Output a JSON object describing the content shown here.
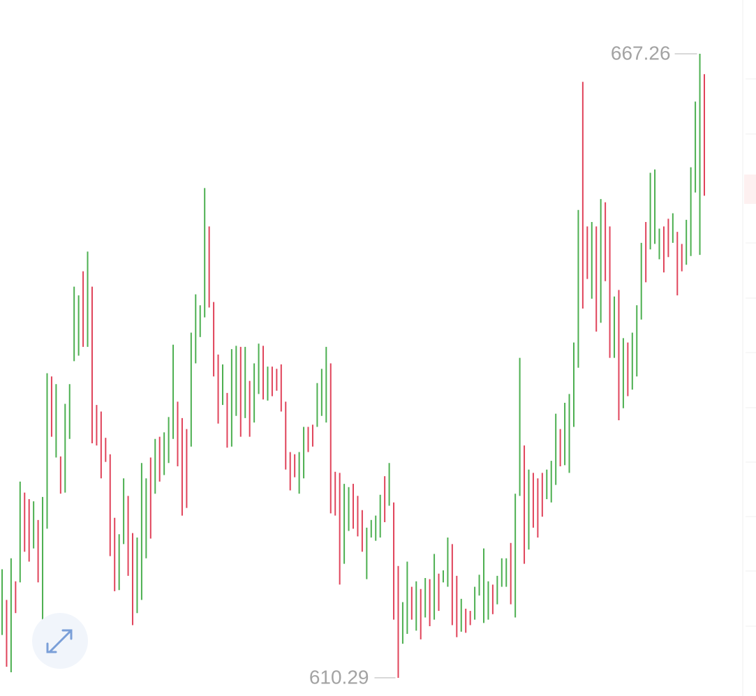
{
  "chart_data": {
    "type": "range-bar",
    "ylim": [
      608.63,
      672.17
    ],
    "color_up": "#4caf50",
    "color_down": "#e0435a",
    "max_label": 667.26,
    "min_label": 610.29,
    "series": [
      {
        "highs": [
          620.2,
          617.4,
          621.2,
          619.1,
          628.2,
          627.2,
          626.6,
          626.4,
          624.7,
          626.8,
          638.1,
          637.8,
          637.1,
          630.5,
          635.3,
          637.1,
          646.0,
          645.2,
          647.4,
          649.2,
          646.0,
          635.2,
          634.6,
          632.2,
          630.7,
          624.9,
          623.4,
          628.5,
          626.9,
          623.5,
          623.1,
          629.9,
          628.5,
          630.4,
          632.1,
          632.3,
          632.7,
          634.1,
          640.7,
          635.5,
          634.0,
          633.0,
          641.8,
          645.3,
          644.3,
          655.0,
          651.5,
          644.6,
          639.8,
          638.9,
          636.3,
          640.3,
          640.6,
          640.5,
          640.5,
          637.4,
          639.0,
          640.8,
          640.6,
          638.7,
          638.7,
          638.5,
          638.9,
          635.5,
          630.9,
          630.7,
          630.9,
          633.2,
          633.2,
          633.4,
          637.2,
          638.5,
          640.5,
          639.0,
          629.1,
          629.0,
          628.0,
          627.7,
          628.0,
          626.9,
          625.6,
          624.0,
          624.7,
          625.1,
          627.0,
          628.7,
          629.9,
          626.3,
          620.5,
          617.2,
          620.9,
          618.6,
          619.1,
          618.4,
          619.4,
          619.3,
          621.6,
          619.8,
          620.1,
          623.1,
          622.5,
          619.6,
          617.5,
          616.6,
          616.4,
          618.6,
          619.7,
          622.1,
          619.1,
          618.8,
          619.6,
          621.2,
          621.2,
          622.6,
          627.1,
          639.5,
          631.5,
          629.3,
          629.0,
          628.5,
          629.0,
          629.3,
          630.1,
          634.4,
          633.0,
          635.4,
          636.2,
          640.9,
          653.0,
          664.7,
          651.5,
          651.9,
          651.5,
          654.0,
          653.7,
          651.5,
          645.1,
          645.7,
          641.3,
          640.9,
          641.8,
          644.3,
          650.0,
          651.9,
          656.4,
          656.7,
          651.3,
          651.5,
          652.2,
          652.7,
          651.0,
          649.9,
          652.1,
          656.9,
          662.9,
          667.26,
          665.4
        ],
        "lows": [
          614.2,
          611.3,
          610.8,
          616.2,
          619.0,
          621.8,
          620.9,
          622.1,
          619.0,
          615.1,
          623.9,
          632.3,
          630.4,
          627.1,
          627.2,
          632.1,
          639.2,
          639.7,
          640.5,
          640.5,
          631.7,
          631.5,
          628.5,
          630.0,
          621.4,
          618.2,
          618.3,
          622.5,
          619.6,
          615.1,
          616.2,
          617.4,
          621.2,
          623.0,
          627.1,
          628.2,
          628.8,
          629.9,
          632.1,
          629.6,
          625.1,
          625.8,
          631.4,
          639.0,
          641.4,
          643.2,
          644.1,
          637.8,
          633.5,
          635.2,
          631.3,
          631.4,
          634.2,
          632.3,
          634.0,
          632.3,
          633.6,
          636.2,
          635.7,
          635.6,
          636.0,
          636.5,
          634.6,
          629.3,
          627.4,
          628.6,
          627.1,
          628.5,
          630.9,
          631.4,
          633.2,
          634.2,
          633.6,
          625.3,
          625.1,
          618.8,
          620.7,
          623.7,
          623.9,
          623.2,
          621.8,
          619.3,
          623.1,
          622.8,
          623.1,
          624.5,
          626.0,
          615.6,
          610.29,
          613.4,
          614.3,
          615.6,
          614.6,
          613.8,
          615.8,
          615.0,
          615.6,
          616.4,
          619.0,
          618.6,
          615.1,
          614.0,
          614.5,
          614.4,
          615.1,
          615.6,
          617.8,
          615.3,
          615.6,
          616.1,
          617.0,
          618.6,
          618.6,
          617.0,
          615.8,
          626.9,
          620.7,
          622.0,
          624.0,
          623.1,
          625.0,
          626.6,
          626.3,
          627.9,
          629.6,
          629.7,
          629.0,
          633.2,
          638.6,
          644.0,
          646.7,
          644.9,
          641.9,
          642.7,
          646.5,
          639.5,
          639.5,
          633.8,
          634.9,
          636.0,
          636.6,
          637.8,
          643.0,
          646.4,
          649.4,
          649.9,
          648.5,
          647.3,
          648.7,
          650.0,
          645.2,
          647.4,
          648.0,
          648.8,
          654.6,
          648.9,
          654.3
        ],
        "up": [
          true,
          false,
          true,
          false,
          true,
          false,
          false,
          true,
          false,
          true,
          true,
          false,
          true,
          false,
          true,
          true,
          true,
          true,
          false,
          true,
          false,
          false,
          false,
          false,
          false,
          false,
          true,
          true,
          false,
          false,
          true,
          true,
          true,
          false,
          true,
          false,
          true,
          true,
          true,
          false,
          false,
          false,
          true,
          true,
          true,
          true,
          false,
          false,
          false,
          true,
          false,
          true,
          true,
          false,
          true,
          false,
          true,
          true,
          false,
          true,
          false,
          false,
          false,
          false,
          false,
          false,
          true,
          true,
          false,
          false,
          true,
          true,
          true,
          false,
          false,
          false,
          true,
          true,
          false,
          false,
          false,
          true,
          true,
          true,
          true,
          false,
          true,
          false,
          false,
          true,
          true,
          false,
          true,
          false,
          true,
          false,
          true,
          false,
          true,
          true,
          false,
          false,
          true,
          false,
          false,
          true,
          true,
          true,
          true,
          false,
          true,
          true,
          true,
          false,
          true,
          true,
          false,
          true,
          false,
          false,
          false,
          true,
          true,
          true,
          false,
          true,
          true,
          true,
          true,
          false,
          false,
          true,
          false,
          true,
          false,
          false,
          true,
          false,
          true,
          false,
          true,
          true,
          true,
          false,
          true,
          true,
          true,
          false,
          false,
          true,
          false,
          false,
          true,
          true,
          true,
          true,
          false
        ]
      }
    ]
  }
}
